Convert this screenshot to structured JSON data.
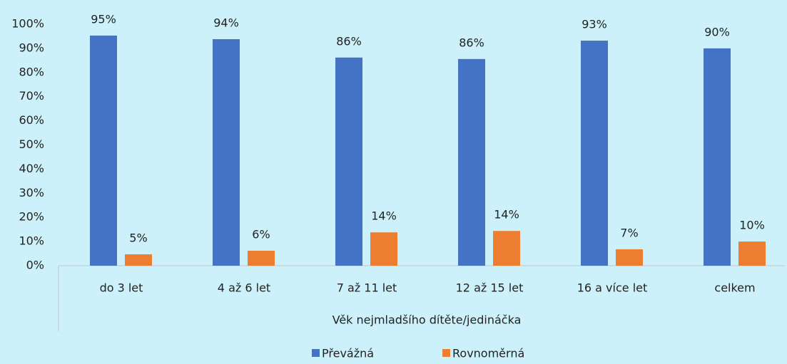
{
  "chart_data": {
    "type": "bar",
    "x_label": "Věk nejmladšího dítěte/jedináčka",
    "categories": [
      "do 3 let",
      "4 až 6 let",
      "7 až 11 let",
      "12 až 15 let",
      "16 a více let",
      "celkem"
    ],
    "series": [
      {
        "name": "Převážná",
        "color": "#4472c4",
        "values": [
          95.3,
          93.8,
          86.2,
          85.6,
          93.2,
          90.0
        ],
        "value_labels": [
          "95%",
          "94%",
          "86%",
          "86%",
          "93%",
          "90%"
        ]
      },
      {
        "name": "Rovnoměrná",
        "color": "#ed7d31",
        "values": [
          4.7,
          6.2,
          13.8,
          14.4,
          6.8,
          10.0
        ],
        "value_labels": [
          "5%",
          "6%",
          "14%",
          "14%",
          "7%",
          "10%"
        ]
      }
    ],
    "ylim": [
      0,
      100
    ],
    "yticks": [
      {
        "value": 0,
        "label": "0%"
      },
      {
        "value": 10,
        "label": "10%"
      },
      {
        "value": 20,
        "label": "20%"
      },
      {
        "value": 30,
        "label": "30%"
      },
      {
        "value": 40,
        "label": "40%"
      },
      {
        "value": 50,
        "label": "50%"
      },
      {
        "value": 60,
        "label": "60%"
      },
      {
        "value": 70,
        "label": "70%"
      },
      {
        "value": 80,
        "label": "80%"
      },
      {
        "value": 90,
        "label": "90%"
      },
      {
        "value": 100,
        "label": "100%"
      }
    ],
    "legend": "bottom"
  }
}
